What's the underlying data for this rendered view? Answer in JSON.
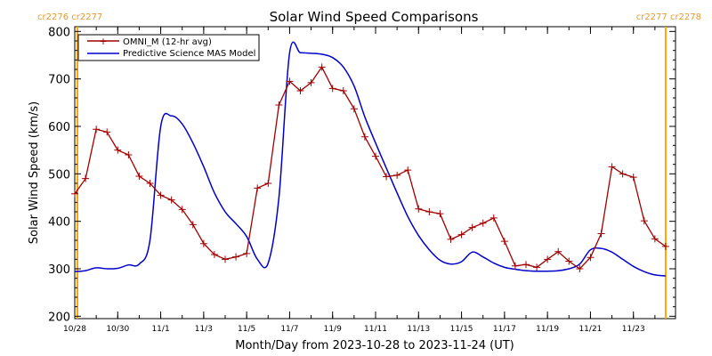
{
  "chart_data": {
    "type": "line",
    "title": "Solar Wind Speed Comparisons",
    "xlabel": "Month/Day from 2023-10-28 to 2023-11-24 (UT)",
    "ylabel": "Solar Wind Speed (km/s)",
    "ylim": [
      195,
      810
    ],
    "xlim": [
      "2023-10-28T00:00",
      "2023-11-24T23:00"
    ],
    "x_ticks": [
      "10/28",
      "10/30",
      "11/1",
      "11/3",
      "11/5",
      "11/7",
      "11/9",
      "11/11",
      "11/13",
      "11/15",
      "11/17",
      "11/19",
      "11/21",
      "11/23"
    ],
    "y_ticks": [
      200,
      300,
      400,
      500,
      600,
      700,
      800
    ],
    "legend_position": "top-left",
    "rotation_labels": {
      "left": "cr2276 cr2277",
      "right": "cr2277 cr2278"
    },
    "carrington_markers": [
      "2023-10-28T03:00",
      "2023-11-24T12:00"
    ],
    "colors": {
      "omni": "#a00000",
      "model": "#0000cc",
      "marker": "#ffa500",
      "rotation_text": "#e69a2e"
    },
    "series": [
      {
        "name": "OMNI_M (12-hr avg)",
        "x": [
          "2023-10-28T00:00",
          "2023-10-28T12:00",
          "2023-10-29T00:00",
          "2023-10-29T12:00",
          "2023-10-30T00:00",
          "2023-10-30T12:00",
          "2023-10-31T00:00",
          "2023-10-31T12:00",
          "2023-11-01T00:00",
          "2023-11-01T12:00",
          "2023-11-02T00:00",
          "2023-11-02T12:00",
          "2023-11-03T00:00",
          "2023-11-03T12:00",
          "2023-11-04T00:00",
          "2023-11-04T12:00",
          "2023-11-05T00:00",
          "2023-11-05T12:00",
          "2023-11-06T00:00",
          "2023-11-06T12:00",
          "2023-11-07T00:00",
          "2023-11-07T12:00",
          "2023-11-08T00:00",
          "2023-11-08T12:00",
          "2023-11-09T00:00",
          "2023-11-09T12:00",
          "2023-11-10T00:00",
          "2023-11-10T12:00",
          "2023-11-11T00:00",
          "2023-11-11T12:00",
          "2023-11-12T00:00",
          "2023-11-12T12:00",
          "2023-11-13T00:00",
          "2023-11-13T12:00",
          "2023-11-14T00:00",
          "2023-11-14T12:00",
          "2023-11-15T00:00",
          "2023-11-15T12:00",
          "2023-11-16T00:00",
          "2023-11-16T12:00",
          "2023-11-17T00:00",
          "2023-11-17T12:00",
          "2023-11-18T00:00",
          "2023-11-18T12:00",
          "2023-11-19T00:00",
          "2023-11-19T12:00",
          "2023-11-20T00:00",
          "2023-11-20T12:00",
          "2023-11-21T00:00",
          "2023-11-21T12:00",
          "2023-11-22T00:00",
          "2023-11-22T12:00",
          "2023-11-23T00:00",
          "2023-11-23T12:00",
          "2023-11-24T00:00",
          "2023-11-24T12:00"
        ],
        "values": [
          458,
          490,
          594,
          588,
          550,
          540,
          495,
          480,
          455,
          445,
          425,
          393,
          353,
          330,
          320,
          325,
          332,
          470,
          480,
          645,
          695,
          675,
          692,
          725,
          680,
          675,
          637,
          578,
          537,
          494,
          497,
          508,
          426,
          420,
          416,
          362,
          372,
          387,
          396,
          407,
          358,
          306,
          309,
          303,
          320,
          336,
          316,
          300,
          324,
          374,
          515,
          500,
          493,
          401,
          363,
          347
        ]
      },
      {
        "name": "Predictive Science MAS Model",
        "x": [
          "2023-10-28T00:00",
          "2023-10-28T12:00",
          "2023-10-29T00:00",
          "2023-10-29T12:00",
          "2023-10-30T00:00",
          "2023-10-30T12:00",
          "2023-10-31T00:00",
          "2023-10-31T12:00",
          "2023-11-01T00:00",
          "2023-11-01T12:00",
          "2023-11-02T00:00",
          "2023-11-02T12:00",
          "2023-11-03T00:00",
          "2023-11-03T12:00",
          "2023-11-04T00:00",
          "2023-11-04T12:00",
          "2023-11-05T00:00",
          "2023-11-05T12:00",
          "2023-11-06T00:00",
          "2023-11-06T12:00",
          "2023-11-07T00:00",
          "2023-11-07T12:00",
          "2023-11-08T00:00",
          "2023-11-08T12:00",
          "2023-11-09T00:00",
          "2023-11-09T12:00",
          "2023-11-10T00:00",
          "2023-11-10T12:00",
          "2023-11-11T00:00",
          "2023-11-11T12:00",
          "2023-11-12T00:00",
          "2023-11-12T12:00",
          "2023-11-13T00:00",
          "2023-11-13T12:00",
          "2023-11-14T00:00",
          "2023-11-14T12:00",
          "2023-11-15T00:00",
          "2023-11-15T12:00",
          "2023-11-16T00:00",
          "2023-11-16T12:00",
          "2023-11-17T00:00",
          "2023-11-17T12:00",
          "2023-11-18T00:00",
          "2023-11-18T12:00",
          "2023-11-19T00:00",
          "2023-11-19T12:00",
          "2023-11-20T00:00",
          "2023-11-20T12:00",
          "2023-11-21T00:00",
          "2023-11-21T12:00",
          "2023-11-22T00:00",
          "2023-11-22T12:00",
          "2023-11-23T00:00",
          "2023-11-23T12:00",
          "2023-11-24T00:00",
          "2023-11-24T12:00"
        ],
        "values": [
          294,
          296,
          302,
          300,
          301,
          308,
          310,
          360,
          600,
          622,
          605,
          565,
          515,
          460,
          420,
          395,
          368,
          320,
          312,
          450,
          755,
          755,
          754,
          752,
          745,
          725,
          685,
          620,
          565,
          512,
          460,
          410,
          370,
          340,
          318,
          310,
          315,
          335,
          325,
          312,
          303,
          299,
          296,
          295,
          295,
          296,
          300,
          310,
          340,
          343,
          335,
          320,
          305,
          294,
          287,
          285
        ]
      }
    ]
  }
}
